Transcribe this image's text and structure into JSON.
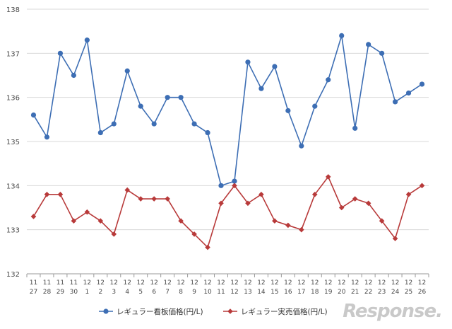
{
  "chart_data": {
    "type": "line",
    "title": "",
    "xlabel": "",
    "ylabel": "",
    "ylim": [
      132,
      138
    ],
    "yticks": [
      132,
      133,
      134,
      135,
      136,
      137,
      138
    ],
    "grid": "horizontal",
    "legend_position": "bottom",
    "categories": [
      [
        "11",
        "27"
      ],
      [
        "11",
        "28"
      ],
      [
        "11",
        "29"
      ],
      [
        "11",
        "30"
      ],
      [
        "12",
        "1"
      ],
      [
        "12",
        "2"
      ],
      [
        "12",
        "3"
      ],
      [
        "12",
        "4"
      ],
      [
        "12",
        "5"
      ],
      [
        "12",
        "6"
      ],
      [
        "12",
        "7"
      ],
      [
        "12",
        "8"
      ],
      [
        "12",
        "9"
      ],
      [
        "12",
        "10"
      ],
      [
        "12",
        "11"
      ],
      [
        "12",
        "12"
      ],
      [
        "12",
        "13"
      ],
      [
        "12",
        "14"
      ],
      [
        "12",
        "15"
      ],
      [
        "12",
        "16"
      ],
      [
        "12",
        "17"
      ],
      [
        "12",
        "18"
      ],
      [
        "12",
        "19"
      ],
      [
        "12",
        "20"
      ],
      [
        "12",
        "21"
      ],
      [
        "12",
        "22"
      ],
      [
        "12",
        "23"
      ],
      [
        "12",
        "24"
      ],
      [
        "12",
        "25"
      ],
      [
        "12",
        "26"
      ]
    ],
    "series": [
      {
        "name": "レギュラー看板価格(円/L)",
        "color": "#3d6eb4",
        "marker": "circle",
        "values": [
          135.6,
          135.1,
          137.0,
          136.5,
          137.3,
          135.2,
          135.4,
          136.6,
          135.8,
          135.4,
          136.0,
          136.0,
          135.4,
          135.2,
          134.0,
          134.1,
          136.8,
          136.2,
          136.7,
          135.7,
          134.9,
          135.8,
          136.4,
          137.4,
          135.3,
          137.2,
          137.0,
          135.9,
          136.1,
          136.3
        ]
      },
      {
        "name": "レギュラー実売価格(円/L)",
        "color": "#b83a3a",
        "marker": "diamond",
        "values": [
          133.3,
          133.8,
          133.8,
          133.2,
          133.4,
          133.2,
          132.9,
          133.9,
          133.7,
          133.7,
          133.7,
          133.2,
          132.9,
          132.6,
          133.6,
          134.0,
          133.6,
          133.8,
          133.2,
          133.1,
          133.0,
          133.8,
          134.2,
          133.5,
          133.7,
          133.6,
          133.2,
          132.8,
          133.8,
          134.0
        ]
      }
    ]
  },
  "watermark": "Response."
}
